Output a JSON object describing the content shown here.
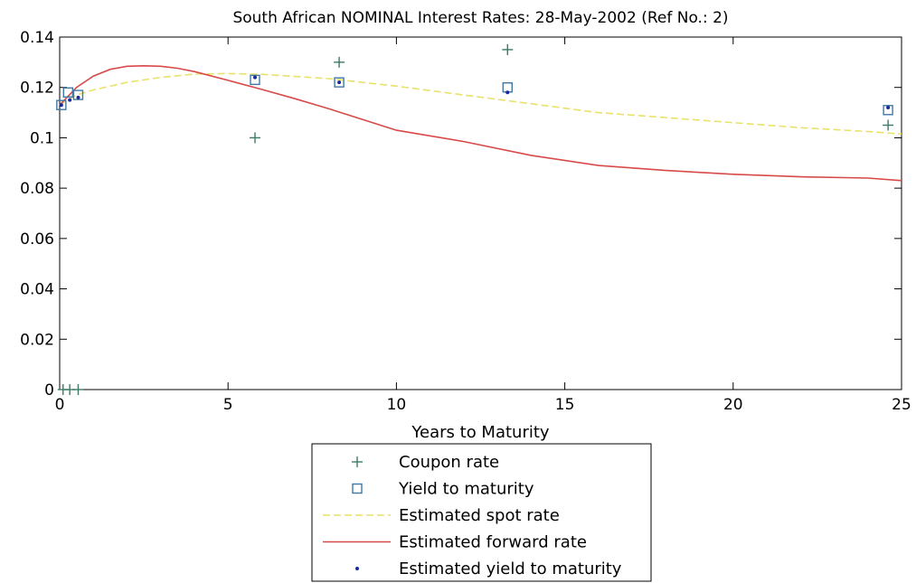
{
  "chart_data": {
    "type": "scatter",
    "title": "South African NOMINAL Interest Rates: 28-May-2002 (Ref No.: 2)",
    "xlabel": "Years to Maturity",
    "ylabel": "",
    "xlim": [
      0,
      25
    ],
    "ylim": [
      0,
      0.14
    ],
    "xticks": [
      0,
      5,
      10,
      15,
      20,
      25
    ],
    "xtick_labels": [
      "0",
      "5",
      "10",
      "15",
      "20",
      "25"
    ],
    "yticks": [
      0,
      0.02,
      0.04,
      0.06,
      0.08,
      0.1,
      0.12,
      0.14
    ],
    "ytick_labels": [
      "0",
      "0.02",
      "0.04",
      "0.06",
      "0.08",
      "0.1",
      "0.12",
      "0.14"
    ],
    "grid": false,
    "legend_position": "below plot, outside",
    "series": [
      {
        "name": "Coupon rate",
        "kind": "marker",
        "marker": "plus",
        "color": "#3d7a6a",
        "x": [
          0.1,
          0.3,
          0.55,
          5.8,
          8.3,
          13.3,
          24.6
        ],
        "y": [
          0,
          0,
          0,
          0.1,
          0.13,
          0.135,
          0.105
        ]
      },
      {
        "name": "Yield to maturity",
        "kind": "marker",
        "marker": "square",
        "color": "#3f78a6",
        "x": [
          0.05,
          0.25,
          0.55,
          5.8,
          8.3,
          13.3,
          24.6
        ],
        "y": [
          0.113,
          0.118,
          0.117,
          0.123,
          0.122,
          0.12,
          0.111
        ]
      },
      {
        "name": "Estimated spot rate",
        "kind": "line",
        "dash": "8,4",
        "color": "#e8e26a",
        "x": [
          0,
          0.5,
          1,
          2,
          3,
          4,
          5,
          6,
          8,
          10,
          12,
          14,
          16,
          18,
          20,
          22,
          24,
          25
        ],
        "y": [
          0.113,
          0.117,
          0.119,
          0.122,
          0.124,
          0.1253,
          0.1255,
          0.1252,
          0.1235,
          0.1205,
          0.117,
          0.1135,
          0.11,
          0.108,
          0.106,
          0.104,
          0.1025,
          0.1015
        ]
      },
      {
        "name": "Estimated forward rate",
        "kind": "line",
        "dash": "",
        "color": "#d84a4a",
        "x": [
          0,
          0.5,
          1,
          1.5,
          2,
          2.5,
          3,
          3.5,
          4,
          5,
          6,
          7,
          8,
          10,
          12,
          14,
          16,
          18,
          20,
          22,
          24,
          25
        ],
        "y": [
          0.113,
          0.12,
          0.1245,
          0.1272,
          0.1284,
          0.1286,
          0.1284,
          0.1276,
          0.1263,
          0.1228,
          0.1192,
          0.1155,
          0.1115,
          0.103,
          0.0985,
          0.093,
          0.089,
          0.087,
          0.0855,
          0.0845,
          0.084,
          0.083
        ]
      },
      {
        "name": "Estimated yield to maturity",
        "kind": "marker",
        "marker": "dot",
        "color": "#1a2a9a",
        "x": [
          0.05,
          0.3,
          0.55,
          5.8,
          8.3,
          13.3,
          24.6
        ],
        "y": [
          0.113,
          0.115,
          0.116,
          0.124,
          0.122,
          0.118,
          0.112
        ]
      }
    ]
  }
}
